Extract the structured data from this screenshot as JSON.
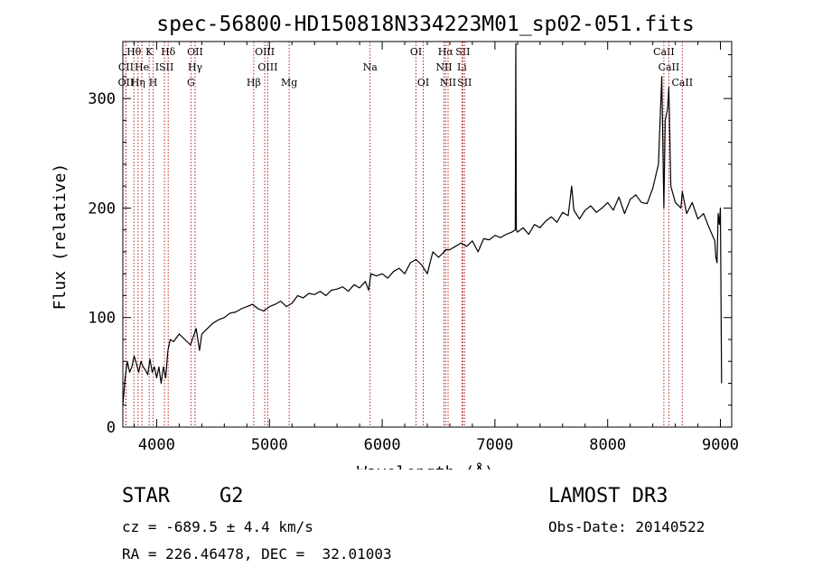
{
  "chart_data": {
    "type": "line",
    "title": "spec-56800-HD150818N334223M01_sp02-051.fits",
    "xlabel": "Wavelength (Å)",
    "ylabel": "Flux (relative)",
    "xlim": [
      3700,
      9100
    ],
    "ylim": [
      0,
      352
    ],
    "xticks": [
      4000,
      5000,
      6000,
      7000,
      8000,
      9000
    ],
    "yticks": [
      0,
      100,
      200,
      300
    ],
    "series": [
      {
        "name": "flux",
        "x": [
          3700,
          3720,
          3740,
          3760,
          3780,
          3800,
          3820,
          3840,
          3860,
          3880,
          3900,
          3920,
          3940,
          3960,
          3980,
          4000,
          4020,
          4040,
          4060,
          4080,
          4100,
          4120,
          4150,
          4200,
          4250,
          4300,
          4350,
          4380,
          4400,
          4450,
          4500,
          4550,
          4600,
          4650,
          4700,
          4750,
          4800,
          4850,
          4900,
          4950,
          5000,
          5050,
          5100,
          5150,
          5200,
          5250,
          5300,
          5350,
          5400,
          5450,
          5500,
          5550,
          5600,
          5650,
          5700,
          5750,
          5800,
          5850,
          5880,
          5900,
          5950,
          6000,
          6050,
          6100,
          6150,
          6200,
          6250,
          6300,
          6350,
          6400,
          6450,
          6500,
          6550,
          6563,
          6600,
          6650,
          6700,
          6750,
          6800,
          6850,
          6900,
          6950,
          7000,
          7050,
          7100,
          7150,
          7180,
          7185,
          7190,
          7200,
          7250,
          7300,
          7350,
          7400,
          7450,
          7500,
          7550,
          7600,
          7650,
          7680,
          7700,
          7750,
          7800,
          7850,
          7900,
          7950,
          8000,
          8050,
          8100,
          8150,
          8200,
          8250,
          8300,
          8350,
          8400,
          8450,
          8480,
          8498,
          8510,
          8530,
          8542,
          8560,
          8600,
          8650,
          8662,
          8700,
          8750,
          8800,
          8850,
          8900,
          8950,
          8960,
          8970,
          8980,
          8990,
          9000,
          9010
        ],
        "y": [
          20,
          45,
          60,
          50,
          55,
          65,
          58,
          50,
          60,
          55,
          52,
          48,
          62,
          50,
          55,
          45,
          55,
          40,
          55,
          45,
          70,
          80,
          78,
          85,
          80,
          75,
          90,
          70,
          85,
          90,
          95,
          98,
          100,
          104,
          105,
          108,
          110,
          112,
          108,
          106,
          110,
          112,
          115,
          110,
          113,
          120,
          118,
          122,
          121,
          124,
          120,
          125,
          126,
          128,
          124,
          130,
          127,
          133,
          125,
          140,
          138,
          140,
          136,
          142,
          145,
          140,
          150,
          153,
          148,
          140,
          160,
          155,
          160,
          162,
          162,
          165,
          168,
          165,
          170,
          160,
          172,
          171,
          175,
          173,
          176,
          178,
          180,
          350,
          180,
          178,
          182,
          176,
          185,
          182,
          188,
          192,
          187,
          196,
          193,
          220,
          198,
          190,
          198,
          202,
          196,
          200,
          205,
          198,
          210,
          195,
          208,
          212,
          205,
          204,
          218,
          240,
          320,
          200,
          280,
          290,
          310,
          220,
          205,
          200,
          215,
          195,
          205,
          190,
          195,
          182,
          170,
          155,
          150,
          195,
          185,
          200,
          40
        ]
      }
    ],
    "lines": [
      {
        "label": "Hθ",
        "x": 3798,
        "row": 0
      },
      {
        "label": "K",
        "x": 3934,
        "row": 0
      },
      {
        "label": "Hδ",
        "x": 4102,
        "row": 0
      },
      {
        "label": "OII",
        "x": 4341,
        "row": 0
      },
      {
        "label": "OIII",
        "x": 4959,
        "row": 0
      },
      {
        "label": "OI",
        "x": 6300,
        "row": 0
      },
      {
        "label": "Hα",
        "x": 6563,
        "row": 0
      },
      {
        "label": "SII",
        "x": 6716,
        "row": 0
      },
      {
        "label": "CaII",
        "x": 8498,
        "row": 0
      },
      {
        "label": "CII",
        "x": 3727,
        "row": 1
      },
      {
        "label": "He",
        "x": 3869,
        "row": 1
      },
      {
        "label": "ISII",
        "x": 4069,
        "row": 1
      },
      {
        "label": "Hγ",
        "x": 4340,
        "row": 1
      },
      {
        "label": "OIII",
        "x": 4985,
        "row": 1
      },
      {
        "label": "Na",
        "x": 5893,
        "row": 1
      },
      {
        "label": "NII",
        "x": 6548,
        "row": 1
      },
      {
        "label": "Li",
        "x": 6708,
        "row": 1
      },
      {
        "label": "CaII",
        "x": 8542,
        "row": 1
      },
      {
        "label": "OII",
        "x": 3727,
        "row": 2
      },
      {
        "label": "Hη",
        "x": 3835,
        "row": 2
      },
      {
        "label": "H",
        "x": 3969,
        "row": 2
      },
      {
        "label": "G",
        "x": 4304,
        "row": 2
      },
      {
        "label": "Hβ",
        "x": 4861,
        "row": 2
      },
      {
        "label": "Mg",
        "x": 5175,
        "row": 2
      },
      {
        "label": "OI",
        "x": 6364,
        "row": 2
      },
      {
        "label": "NII",
        "x": 6584,
        "row": 2
      },
      {
        "label": "SII",
        "x": 6731,
        "row": 2
      },
      {
        "label": "CaII",
        "x": 8662,
        "row": 2
      }
    ],
    "grid": false,
    "line_color": "#000000",
    "marker_color": "#b22222"
  },
  "info": {
    "object_type": "STAR",
    "subclass": "G2",
    "survey": "LAMOST DR3",
    "redshift": "cz = -689.5 ± 4.4 km/s",
    "obs_date": "Obs-Date: 20140522",
    "coords": "RA = 226.46478, DEC =  32.01003"
  }
}
